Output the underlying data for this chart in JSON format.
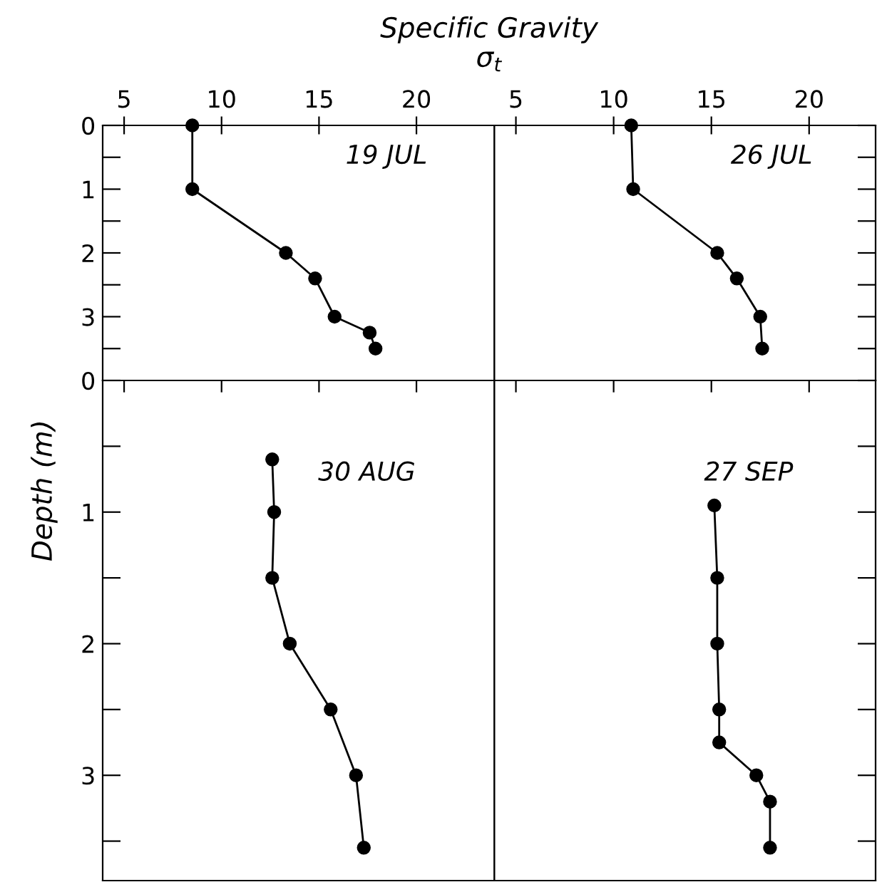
{
  "chart_data": [
    {
      "type": "line",
      "title": "Specific Gravity",
      "subtitle": "σ$_{t}$",
      "ylabel": "Depth (m)",
      "annotations": [
        "19 JUL"
      ],
      "marker": "circle",
      "line_style": "solid",
      "series": [
        {
          "color": "#000000",
          "x": [
            8.5,
            8.5,
            13.3,
            14.8,
            15.8,
            17.6,
            17.9
          ],
          "values": [
            0,
            1,
            2,
            2.4,
            3,
            3.25,
            3.5
          ]
        }
      ],
      "xlim": [
        3.9,
        24
      ],
      "xticks": [
        5,
        10,
        15,
        20
      ],
      "ylim": [
        4,
        0
      ],
      "yticks": [
        0,
        {
          "value": 0.5,
          "label": null
        },
        1,
        {
          "value": 1.5,
          "label": null
        },
        2,
        {
          "value": 2.5,
          "label": null
        },
        3,
        {
          "value": 3.5,
          "label": null
        }
      ]
    },
    {
      "type": "line",
      "annotations": [
        "26 JUL"
      ],
      "marker": "circle",
      "line_style": "solid",
      "tick_labels": "x",
      "series": [
        {
          "color": "#000000",
          "x": [
            10.9,
            11.0,
            15.3,
            16.3,
            17.5,
            17.6
          ],
          "values": [
            0,
            1,
            2,
            2.4,
            3,
            3.5
          ]
        }
      ],
      "xlim": [
        3.9,
        23.4
      ],
      "xticks": [
        5,
        10,
        15,
        20
      ],
      "ylim": [
        4,
        0
      ],
      "yticks": [
        0,
        0.5,
        1,
        1.5,
        2,
        2.5,
        3,
        3.5
      ]
    },
    {
      "type": "line",
      "annotations": [
        "30 AUG"
      ],
      "marker": "circle",
      "line_style": "solid",
      "tick_labels": "y",
      "series": [
        {
          "color": "#000000",
          "x": [
            12.6,
            12.7,
            12.6,
            13.5,
            15.6,
            16.9,
            17.3
          ],
          "values": [
            0.6,
            1,
            1.5,
            2,
            2.5,
            3,
            3.55
          ]
        }
      ],
      "xlim": [
        3.9,
        24
      ],
      "xticks": [
        5,
        10,
        15,
        20
      ],
      "ylim": [
        3.8,
        0
      ],
      "yticks": [
        0,
        {
          "value": 0.5,
          "label": null
        },
        1,
        {
          "value": 1.5,
          "label": null
        },
        2,
        {
          "value": 2.5,
          "label": null
        },
        3,
        {
          "value": 3.5,
          "label": null
        }
      ]
    },
    {
      "type": "line",
      "annotations": [
        "27 SEP"
      ],
      "marker": "circle",
      "line_style": "solid",
      "tick_labels": false,
      "series": [
        {
          "color": "#000000",
          "x": [
            15.15,
            15.3,
            15.3,
            15.4,
            15.4,
            17.3,
            18.0,
            18.0
          ],
          "values": [
            0.95,
            1.5,
            2,
            2.5,
            2.75,
            3,
            3.2,
            3.55
          ]
        }
      ],
      "xlim": [
        3.9,
        23.4
      ],
      "xticks": [
        5,
        10,
        15,
        20
      ],
      "ylim": [
        3.8,
        0
      ],
      "yticks": [
        0,
        0.5,
        1,
        1.5,
        2,
        2.5,
        3,
        3.5
      ]
    }
  ]
}
